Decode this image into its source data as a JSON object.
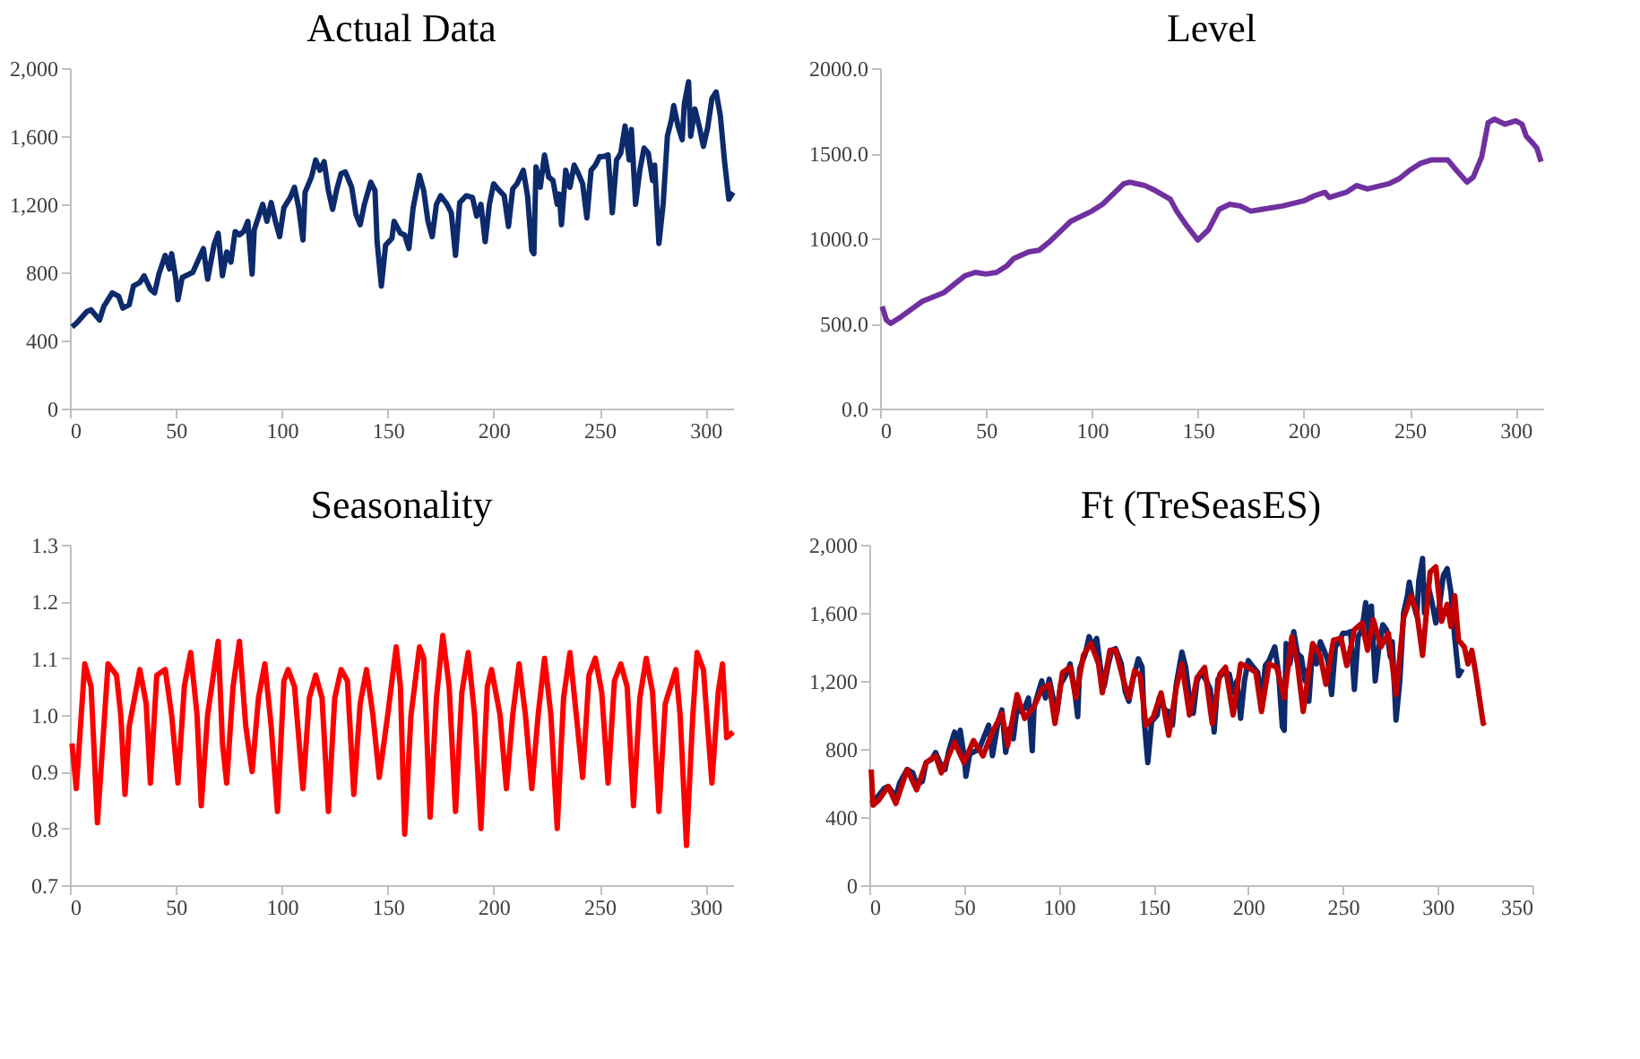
{
  "chart_data": [
    {
      "type": "line",
      "title": "Actual Data",
      "xlim": [
        0,
        313
      ],
      "xticks": [
        0,
        50,
        100,
        150,
        200,
        250,
        300
      ],
      "ylim": [
        0,
        2000
      ],
      "yticks": [
        0,
        {
          "value": 400,
          "label": "400"
        },
        {
          "value": 800,
          "label": "800"
        },
        {
          "value": 1200,
          "label": "1,200"
        },
        {
          "value": 1600,
          "label": "1,600"
        },
        {
          "value": 2000,
          "label": "2,000"
        }
      ],
      "grid": false,
      "series": [
        {
          "color": "#0d2a6b",
          "x": [
            1,
            3,
            8,
            10,
            14,
            16,
            20,
            23,
            25,
            28,
            30,
            33,
            35,
            38,
            40,
            42,
            45,
            47,
            48,
            50,
            51,
            53,
            58,
            63,
            65,
            68,
            70,
            72,
            74,
            76,
            78,
            80,
            82,
            84,
            86,
            87,
            91,
            93,
            95,
            97,
            99,
            101,
            104,
            106,
            108,
            110,
            111,
            114,
            116,
            118,
            120,
            122,
            124,
            126,
            128,
            130,
            133,
            135,
            137,
            139,
            142,
            144,
            145,
            147,
            149,
            152,
            153,
            156,
            158,
            160,
            162,
            165,
            167,
            169,
            171,
            173,
            175,
            178,
            180,
            182,
            184,
            187,
            190,
            192,
            194,
            196,
            198,
            200,
            202,
            205,
            207,
            209,
            211,
            214,
            216,
            218,
            219,
            220,
            222,
            224,
            226,
            228,
            230,
            231,
            232,
            234,
            236,
            238,
            240,
            242,
            244,
            246,
            248,
            250,
            252,
            254,
            256,
            258,
            260,
            262,
            264,
            265,
            267,
            269,
            271,
            273,
            275,
            276,
            278,
            280,
            282,
            284,
            285,
            287,
            289,
            290,
            292,
            293,
            295,
            297,
            299,
            301,
            303,
            305,
            307,
            309,
            311,
            313
          ],
          "values": [
            480,
            500,
            570,
            580,
            520,
            600,
            680,
            660,
            590,
            610,
            720,
            740,
            780,
            700,
            680,
            790,
            900,
            820,
            910,
            760,
            640,
            770,
            800,
            940,
            760,
            960,
            1030,
            780,
            920,
            860,
            1040,
            1020,
            1040,
            1100,
            790,
            1050,
            1200,
            1100,
            1210,
            1100,
            1010,
            1180,
            1240,
            1300,
            1180,
            990,
            1270,
            1360,
            1460,
            1400,
            1450,
            1280,
            1170,
            1290,
            1380,
            1390,
            1300,
            1140,
            1080,
            1200,
            1330,
            1280,
            980,
            720,
            960,
            1000,
            1100,
            1030,
            1020,
            940,
            1180,
            1370,
            1280,
            1100,
            1010,
            1200,
            1250,
            1200,
            1150,
            900,
            1210,
            1250,
            1240,
            1130,
            1200,
            980,
            1200,
            1320,
            1290,
            1250,
            1070,
            1290,
            1320,
            1400,
            1250,
            930,
            910,
            1420,
            1300,
            1490,
            1360,
            1340,
            1200,
            1260,
            1080,
            1400,
            1300,
            1430,
            1380,
            1320,
            1120,
            1400,
            1430,
            1480,
            1480,
            1490,
            1150,
            1460,
            1500,
            1660,
            1460,
            1640,
            1200,
            1400,
            1530,
            1500,
            1340,
            1430,
            970,
            1200,
            1600,
            1700,
            1780,
            1660,
            1580,
            1790,
            1920,
            1600,
            1760,
            1660,
            1540,
            1650,
            1820,
            1860,
            1720,
            1450,
            1230,
            1270
          ]
        }
      ]
    },
    {
      "type": "line",
      "title": "Level",
      "xlim": [
        0,
        313
      ],
      "xticks": [
        0,
        50,
        100,
        150,
        200,
        250,
        300
      ],
      "ylim": [
        0,
        2000
      ],
      "yticks": [
        {
          "value": 0,
          "label": "0.0"
        },
        {
          "value": 500,
          "label": "500.0"
        },
        {
          "value": 1000,
          "label": "1000.0"
        },
        {
          "value": 1500,
          "label": "1500.0"
        },
        {
          "value": 2000,
          "label": "2000.0"
        }
      ],
      "grid": false,
      "series": [
        {
          "color": "#7030a0",
          "x": [
            1,
            3,
            5,
            10,
            20,
            30,
            40,
            45,
            50,
            55,
            60,
            63,
            70,
            75,
            80,
            90,
            100,
            105,
            110,
            115,
            118,
            125,
            130,
            137,
            140,
            145,
            150,
            155,
            160,
            165,
            170,
            175,
            180,
            190,
            200,
            205,
            210,
            212,
            220,
            225,
            230,
            240,
            245,
            250,
            255,
            260,
            265,
            268,
            272,
            277,
            280,
            284,
            287,
            290,
            295,
            300,
            303,
            305,
            308,
            310,
            312
          ],
          "values": [
            600,
            520,
            500,
            540,
            630,
            680,
            780,
            800,
            790,
            800,
            840,
            880,
            920,
            930,
            980,
            1100,
            1160,
            1200,
            1260,
            1320,
            1330,
            1310,
            1280,
            1230,
            1160,
            1070,
            990,
            1050,
            1170,
            1200,
            1190,
            1160,
            1170,
            1190,
            1220,
            1250,
            1270,
            1240,
            1270,
            1310,
            1290,
            1320,
            1350,
            1400,
            1440,
            1460,
            1460,
            1460,
            1400,
            1330,
            1360,
            1480,
            1680,
            1700,
            1670,
            1690,
            1670,
            1600,
            1560,
            1530,
            1450
          ]
        }
      ]
    },
    {
      "type": "line",
      "title": "Seasonality",
      "xlim": [
        0,
        313
      ],
      "xticks": [
        0,
        50,
        100,
        150,
        200,
        250,
        300
      ],
      "ylim": [
        0.7,
        1.3
      ],
      "yticks": [
        0.7,
        0.8,
        0.9,
        {
          "value": 1,
          "label": "1.0"
        },
        1.1,
        1.2,
        1.3
      ],
      "grid": false,
      "series": [
        {
          "color": "#ff0000",
          "x": [
            1,
            3,
            7,
            10,
            13,
            18,
            22,
            24,
            26,
            28,
            33,
            36,
            38,
            41,
            45,
            48,
            51,
            54,
            57,
            60,
            62,
            65,
            70,
            72,
            74,
            77,
            80,
            83,
            86,
            89,
            92,
            95,
            98,
            101,
            103,
            106,
            110,
            113,
            116,
            119,
            122,
            125,
            128,
            131,
            134,
            137,
            140,
            143,
            146,
            150,
            154,
            156,
            158,
            161,
            165,
            167,
            170,
            173,
            176,
            179,
            182,
            185,
            188,
            191,
            194,
            197,
            199,
            203,
            206,
            209,
            212,
            215,
            218,
            221,
            224,
            227,
            230,
            233,
            236,
            239,
            242,
            245,
            248,
            251,
            254,
            257,
            260,
            263,
            266,
            269,
            272,
            275,
            278,
            281,
            286,
            288,
            291,
            294,
            296,
            299,
            303,
            306,
            308,
            310,
            313
          ],
          "values": [
            0.95,
            0.87,
            1.09,
            1.05,
            0.81,
            1.09,
            1.07,
            1.0,
            0.86,
            0.98,
            1.08,
            1.02,
            0.88,
            1.07,
            1.08,
            1.0,
            0.88,
            1.05,
            1.11,
            1.0,
            0.84,
            1.0,
            1.13,
            0.95,
            0.88,
            1.05,
            1.13,
            0.98,
            0.9,
            1.03,
            1.09,
            0.98,
            0.83,
            1.06,
            1.08,
            1.05,
            0.87,
            1.03,
            1.07,
            1.03,
            0.83,
            1.03,
            1.08,
            1.06,
            0.86,
            1.02,
            1.08,
            1.0,
            0.89,
            1.0,
            1.12,
            1.05,
            0.79,
            1.0,
            1.12,
            1.1,
            0.82,
            1.03,
            1.14,
            1.05,
            0.83,
            1.04,
            1.11,
            1.0,
            0.8,
            1.05,
            1.08,
            1.0,
            0.87,
            1.0,
            1.09,
            1.0,
            0.87,
            1.0,
            1.1,
            1.0,
            0.8,
            1.03,
            1.11,
            1.0,
            0.89,
            1.07,
            1.1,
            1.04,
            0.88,
            1.06,
            1.09,
            1.05,
            0.84,
            1.03,
            1.1,
            1.04,
            0.83,
            1.02,
            1.08,
            1.0,
            0.77,
            1.0,
            1.11,
            1.08,
            0.88,
            1.04,
            1.09,
            0.96,
            0.97
          ]
        }
      ]
    },
    {
      "type": "line",
      "title": "Ft (TreSeasES)",
      "xlim": [
        0,
        350
      ],
      "xticks": [
        0,
        50,
        100,
        150,
        200,
        250,
        300,
        350
      ],
      "ylim": [
        0,
        2000
      ],
      "yticks": [
        0,
        {
          "value": 400,
          "label": "400"
        },
        {
          "value": 800,
          "label": "800"
        },
        {
          "value": 1200,
          "label": "1,200"
        },
        {
          "value": 1600,
          "label": "1,600"
        },
        {
          "value": 2000,
          "label": "2,000"
        }
      ],
      "grid": false,
      "series": [
        {
          "color": "#0d2a6b",
          "x": [
            1,
            3,
            8,
            10,
            14,
            16,
            20,
            23,
            25,
            28,
            30,
            33,
            35,
            38,
            40,
            42,
            45,
            47,
            48,
            50,
            51,
            53,
            58,
            63,
            65,
            68,
            70,
            72,
            74,
            76,
            78,
            80,
            82,
            84,
            86,
            87,
            91,
            93,
            95,
            97,
            99,
            101,
            104,
            106,
            108,
            110,
            111,
            114,
            116,
            118,
            120,
            122,
            124,
            126,
            128,
            130,
            133,
            135,
            137,
            139,
            142,
            144,
            145,
            147,
            149,
            152,
            153,
            156,
            158,
            160,
            162,
            165,
            167,
            169,
            171,
            173,
            175,
            178,
            180,
            182,
            184,
            187,
            190,
            192,
            194,
            196,
            198,
            200,
            202,
            205,
            207,
            209,
            211,
            214,
            216,
            218,
            219,
            220,
            222,
            224,
            226,
            228,
            230,
            231,
            232,
            234,
            236,
            238,
            240,
            242,
            244,
            246,
            248,
            250,
            252,
            254,
            256,
            258,
            260,
            262,
            264,
            265,
            267,
            269,
            271,
            273,
            275,
            276,
            278,
            280,
            282,
            284,
            285,
            287,
            289,
            290,
            292,
            293,
            295,
            297,
            299,
            301,
            303,
            305,
            307,
            309,
            311,
            313
          ],
          "values": [
            480,
            500,
            570,
            580,
            520,
            600,
            680,
            660,
            590,
            610,
            720,
            740,
            780,
            700,
            680,
            790,
            900,
            820,
            910,
            760,
            640,
            770,
            800,
            940,
            760,
            960,
            1030,
            780,
            920,
            860,
            1040,
            1020,
            1040,
            1100,
            790,
            1050,
            1200,
            1100,
            1210,
            1100,
            1010,
            1180,
            1240,
            1300,
            1180,
            990,
            1270,
            1360,
            1460,
            1400,
            1450,
            1280,
            1170,
            1290,
            1380,
            1390,
            1300,
            1140,
            1080,
            1200,
            1330,
            1280,
            980,
            720,
            960,
            1000,
            1100,
            1030,
            1020,
            940,
            1180,
            1370,
            1280,
            1100,
            1010,
            1200,
            1250,
            1200,
            1150,
            900,
            1210,
            1250,
            1240,
            1130,
            1200,
            980,
            1200,
            1320,
            1290,
            1250,
            1070,
            1290,
            1320,
            1400,
            1250,
            930,
            910,
            1420,
            1300,
            1490,
            1360,
            1340,
            1200,
            1260,
            1080,
            1400,
            1300,
            1430,
            1380,
            1320,
            1120,
            1400,
            1430,
            1480,
            1480,
            1490,
            1150,
            1460,
            1500,
            1660,
            1460,
            1640,
            1200,
            1400,
            1530,
            1500,
            1340,
            1430,
            970,
            1200,
            1600,
            1700,
            1780,
            1660,
            1580,
            1790,
            1920,
            1600,
            1760,
            1660,
            1540,
            1650,
            1820,
            1860,
            1720,
            1450,
            1230,
            1270
          ]
        },
        {
          "color": "#c00000",
          "x": [
            1,
            2,
            5,
            10,
            14,
            20,
            25,
            30,
            35,
            38,
            45,
            50,
            55,
            60,
            65,
            70,
            73,
            78,
            82,
            87,
            91,
            95,
            98,
            102,
            106,
            109,
            113,
            117,
            121,
            123,
            127,
            130,
            134,
            137,
            140,
            143,
            146,
            150,
            154,
            158,
            162,
            165,
            169,
            173,
            177,
            181,
            185,
            188,
            192,
            196,
            200,
            204,
            207,
            211,
            215,
            219,
            223,
            226,
            229,
            234,
            238,
            241,
            245,
            249,
            252,
            256,
            260,
            263,
            266,
            270,
            274,
            278,
            282,
            286,
            289,
            292,
            296,
            299,
            302,
            305,
            307,
            309,
            311,
            314,
            316,
            318,
            320,
            322,
            324,
            325
          ],
          "values": [
            680,
            470,
            500,
            580,
            480,
            680,
            560,
            720,
            760,
            660,
            840,
            720,
            850,
            760,
            900,
            1010,
            820,
            1120,
            980,
            1050,
            1150,
            1180,
            950,
            1250,
            1280,
            1100,
            1350,
            1420,
            1300,
            1130,
            1380,
            1380,
            1210,
            1100,
            1260,
            1230,
            940,
            990,
            1130,
            880,
            1160,
            1300,
            1000,
            1220,
            1280,
            950,
            1240,
            1280,
            1000,
            1300,
            1280,
            1250,
            1020,
            1300,
            1280,
            1100,
            1460,
            1300,
            1020,
            1420,
            1350,
            1180,
            1440,
            1450,
            1290,
            1500,
            1540,
            1380,
            1560,
            1400,
            1480,
            1120,
            1570,
            1700,
            1600,
            1350,
            1840,
            1870,
            1550,
            1650,
            1520,
            1700,
            1440,
            1400,
            1300,
            1380,
            1250,
            1100,
            950,
            960
          ]
        }
      ]
    }
  ]
}
